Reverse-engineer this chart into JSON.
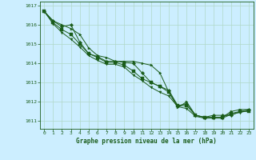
{
  "title": "Graphe pression niveau de la mer (hPa)",
  "background_color": "#cceeff",
  "grid_color": "#aaddcc",
  "line_color": "#1a5c1a",
  "xlim": [
    -0.5,
    23.5
  ],
  "ylim": [
    1010.6,
    1017.2
  ],
  "yticks": [
    1011,
    1012,
    1013,
    1014,
    1015,
    1016,
    1017
  ],
  "xticks": [
    0,
    1,
    2,
    3,
    4,
    5,
    6,
    7,
    8,
    9,
    10,
    11,
    12,
    13,
    14,
    15,
    16,
    17,
    18,
    19,
    20,
    21,
    22,
    23
  ],
  "series": [
    [
      1016.7,
      1016.2,
      1016.0,
      1015.8,
      1015.5,
      1014.8,
      1014.4,
      1014.3,
      1014.1,
      1014.1,
      1014.1,
      1014.0,
      1013.9,
      1013.5,
      1012.5,
      1011.7,
      1012.0,
      1011.3,
      1011.2,
      1011.2,
      1011.2,
      1011.5,
      1011.6,
      1011.6
    ],
    [
      1016.7,
      1016.2,
      1015.9,
      1016.0,
      1015.1,
      1014.5,
      1014.35,
      1014.1,
      1014.1,
      1014.05,
      1014.0,
      1013.5,
      1013.0,
      1012.8,
      1012.6,
      1011.8,
      1011.9,
      1011.3,
      1011.2,
      1011.3,
      1011.3,
      1011.3,
      1011.5,
      1011.6
    ],
    [
      1016.7,
      1016.1,
      1015.75,
      1015.5,
      1015.0,
      1014.5,
      1014.3,
      1014.05,
      1014.05,
      1013.9,
      1013.6,
      1013.2,
      1013.0,
      1012.8,
      1012.5,
      1011.8,
      1011.8,
      1011.3,
      1011.2,
      1011.2,
      1011.2,
      1011.4,
      1011.5,
      1011.5
    ],
    [
      1016.7,
      1016.05,
      1015.6,
      1015.25,
      1014.85,
      1014.4,
      1014.15,
      1013.95,
      1013.95,
      1013.8,
      1013.4,
      1013.1,
      1012.75,
      1012.5,
      1012.3,
      1011.75,
      1011.65,
      1011.25,
      1011.15,
      1011.15,
      1011.15,
      1011.35,
      1011.45,
      1011.55
    ]
  ]
}
